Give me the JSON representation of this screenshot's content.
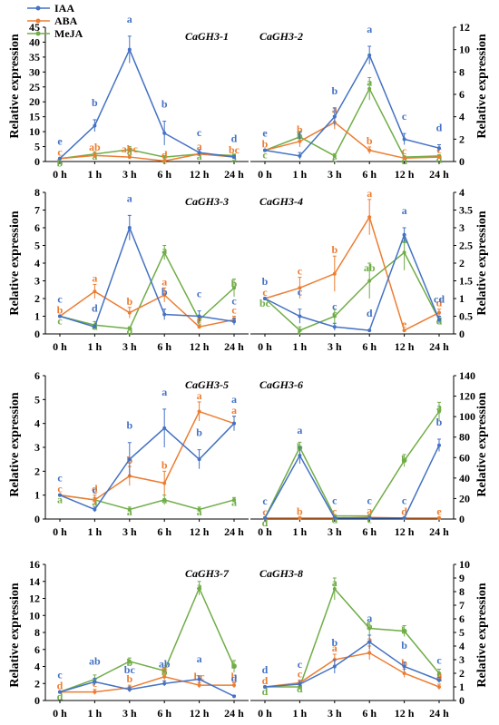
{
  "y_axis_label": "Relative expression",
  "legend": [
    "IAA",
    "ABA",
    "MeJA"
  ],
  "colors": {
    "IAA": "#4472C4",
    "ABA": "#ED7D31",
    "MeJA": "#70AD47",
    "axis": "#000000"
  },
  "chart_data": [
    {
      "type": "line",
      "title": "CaGH3-1",
      "side": "left",
      "x": [
        "0 h",
        "1 h",
        "3 h",
        "6 h",
        "12 h",
        "24 h"
      ],
      "ylim": [
        0,
        45
      ],
      "yticks": [
        0,
        5,
        10,
        15,
        20,
        25,
        30,
        35,
        40,
        45
      ],
      "series": [
        {
          "name": "IAA",
          "values": [
            1,
            12,
            37.5,
            9.5,
            3,
            1.5
          ],
          "errors": [
            0,
            2,
            4.5,
            4,
            1,
            0.5
          ],
          "labels": [
            "e",
            "b",
            "a",
            "b",
            "c",
            "d"
          ]
        },
        {
          "name": "ABA",
          "values": [
            1,
            2,
            1.5,
            0.2,
            2.5,
            1.5
          ],
          "errors": [
            0,
            0.8,
            0.6,
            0,
            0.5,
            0.3
          ],
          "labels": [
            "c",
            "ab",
            "abc",
            "d",
            "a",
            "bc"
          ]
        },
        {
          "name": "MeJA",
          "values": [
            1,
            2.5,
            4,
            1.5,
            2.5,
            2
          ],
          "errors": [
            0,
            0.8,
            1,
            0.5,
            0.8,
            0.5
          ],
          "labels": [
            "b",
            "a",
            "a",
            "c",
            "a",
            "a"
          ]
        }
      ]
    },
    {
      "type": "line",
      "title": "CaGH3-2",
      "side": "right",
      "x": [
        "0 h",
        "1 h",
        "3 h",
        "6 h",
        "12 h",
        "24 h"
      ],
      "ylim": [
        0,
        12
      ],
      "yticks": [
        0,
        2,
        4,
        6,
        8,
        10,
        12
      ],
      "series": [
        {
          "name": "IAA",
          "values": [
            1,
            0.5,
            4,
            9.5,
            2,
            1.2
          ],
          "errors": [
            0,
            0.3,
            0.8,
            0.8,
            0.5,
            0.3
          ],
          "labels": [
            "e",
            "f",
            "b",
            "a",
            "c",
            "d"
          ]
        },
        {
          "name": "ABA",
          "values": [
            1,
            1.8,
            3.5,
            1,
            0.3,
            0.4
          ],
          "errors": [
            0,
            0.5,
            0.6,
            0.3,
            0.1,
            0.1
          ],
          "labels": [
            "b",
            "b",
            "a",
            "b",
            "c",
            "c"
          ]
        },
        {
          "name": "MeJA",
          "values": [
            1,
            2.2,
            0.5,
            6.5,
            0.4,
            0.5
          ],
          "errors": [
            0,
            0.5,
            0.2,
            1,
            0.1,
            0.1
          ],
          "labels": [
            "c",
            "b",
            "e",
            "a",
            "d",
            "d"
          ]
        }
      ]
    },
    {
      "type": "line",
      "title": "CaGH3-3",
      "side": "left",
      "x": [
        "0 h",
        "1 h",
        "3 h",
        "6 h",
        "12 h",
        "24 h"
      ],
      "ylim": [
        0,
        8
      ],
      "yticks": [
        0,
        1,
        2,
        3,
        4,
        5,
        6,
        7,
        8
      ],
      "series": [
        {
          "name": "IAA",
          "values": [
            1,
            0.4,
            6,
            1.1,
            1,
            0.7
          ],
          "errors": [
            0,
            0.1,
            0.7,
            0.3,
            0.3,
            0.2
          ],
          "labels": [
            "c",
            "d",
            "a",
            "b",
            "c",
            "c"
          ]
        },
        {
          "name": "ABA",
          "values": [
            1,
            2.4,
            1.2,
            2.2,
            0.4,
            0.8
          ],
          "errors": [
            0,
            0.4,
            0.3,
            0.4,
            0.1,
            0.2
          ],
          "labels": [
            "b",
            "a",
            "b",
            "a",
            "c",
            "c"
          ]
        },
        {
          "name": "MeJA",
          "values": [
            1,
            0.5,
            0.3,
            4.6,
            0.8,
            2.6
          ],
          "errors": [
            0,
            0.2,
            0.1,
            0.4,
            0.2,
            0.5
          ],
          "labels": [
            "c",
            "d",
            "d",
            "a",
            "c",
            "b"
          ]
        }
      ]
    },
    {
      "type": "line",
      "title": "CaGH3-4",
      "side": "right",
      "x": [
        "0 h",
        "1 h",
        "3 h",
        "6 h",
        "12 h",
        "24 h"
      ],
      "ylim": [
        0,
        4
      ],
      "yticks": [
        0,
        0.5,
        1,
        1.5,
        2,
        2.5,
        3,
        3.5,
        4
      ],
      "series": [
        {
          "name": "IAA",
          "values": [
            1,
            0.5,
            0.2,
            0.1,
            2.8,
            0.4
          ],
          "errors": [
            0,
            0.2,
            0.1,
            0,
            0.2,
            0.1
          ],
          "labels": [
            "b",
            "c",
            "c",
            "d",
            "a",
            "cd"
          ]
        },
        {
          "name": "ABA",
          "values": [
            1,
            1.3,
            1.7,
            3.3,
            0.1,
            0.6
          ],
          "errors": [
            0,
            0.3,
            0.5,
            0.5,
            0,
            0.1
          ],
          "labels": [
            "c",
            "c",
            "b",
            "a",
            "e",
            "d"
          ]
        },
        {
          "name": "MeJA",
          "values": [
            1,
            0.1,
            0.5,
            1.5,
            2.3,
            0.4
          ],
          "errors": [
            0,
            0.1,
            0.2,
            0.5,
            0.5,
            0.1
          ],
          "labels": [
            "bc",
            "c",
            "c",
            "ab",
            "a",
            "d"
          ]
        }
      ]
    },
    {
      "type": "line",
      "title": "CaGH3-5",
      "side": "left",
      "x": [
        "0 h",
        "1 h",
        "3 h",
        "6 h",
        "12 h",
        "24 h"
      ],
      "ylim": [
        0,
        6
      ],
      "yticks": [
        0,
        1,
        2,
        3,
        4,
        5,
        6
      ],
      "series": [
        {
          "name": "IAA",
          "values": [
            1,
            0.4,
            2.5,
            3.8,
            2.5,
            4
          ],
          "errors": [
            0,
            0.1,
            0.7,
            0.8,
            0.4,
            0.3
          ],
          "labels": [
            "c",
            "c",
            "b",
            "a",
            "b",
            "a"
          ]
        },
        {
          "name": "ABA",
          "values": [
            1,
            0.8,
            1.8,
            1.5,
            4.5,
            4
          ],
          "errors": [
            0,
            0.2,
            0.4,
            0.5,
            0.4,
            0.3
          ],
          "labels": [
            "c",
            "d",
            "b",
            "b",
            "a",
            "a"
          ]
        },
        {
          "name": "MeJA",
          "values": [
            1,
            0.8,
            0.4,
            0.8,
            0.4,
            0.8
          ],
          "errors": [
            0,
            0.1,
            0.1,
            0.2,
            0.1,
            0.1
          ],
          "labels": [
            "a",
            "a",
            "a",
            "a",
            "a",
            "a"
          ]
        }
      ]
    },
    {
      "type": "line",
      "title": "CaGH3-6",
      "side": "right",
      "x": [
        "0 h",
        "1 h",
        "3 h",
        "6 h",
        "12 h",
        "24 h"
      ],
      "ylim": [
        0,
        140
      ],
      "yticks": [
        0,
        20,
        40,
        60,
        80,
        100,
        120,
        140
      ],
      "series": [
        {
          "name": "IAA",
          "values": [
            1,
            62,
            1,
            1,
            1,
            72
          ],
          "errors": [
            0,
            8,
            0.5,
            0.5,
            0.5,
            6
          ],
          "labels": [
            "c",
            "a",
            "c",
            "c",
            "c",
            "b"
          ]
        },
        {
          "name": "ABA",
          "values": [
            1,
            1,
            1,
            1.5,
            1,
            1
          ],
          "errors": [
            0,
            0.5,
            0.5,
            0.5,
            0.5,
            0.5
          ],
          "labels": [
            "c",
            "b",
            "c",
            "a",
            "d",
            "e"
          ]
        },
        {
          "name": "MeJA",
          "values": [
            1,
            70,
            3,
            3,
            57,
            105
          ],
          "errors": [
            0,
            5,
            1,
            1,
            6,
            9
          ],
          "labels": [
            "d",
            "b",
            "d",
            "c",
            "b",
            "a"
          ]
        }
      ]
    },
    {
      "type": "line",
      "title": "CaGH3-7",
      "side": "left",
      "x": [
        "0 h",
        "1 h",
        "3 h",
        "6 h",
        "12 h",
        "24 h"
      ],
      "ylim": [
        0,
        16
      ],
      "yticks": [
        0,
        2,
        4,
        6,
        8,
        10,
        12,
        14,
        16
      ],
      "series": [
        {
          "name": "IAA",
          "values": [
            1,
            2.2,
            1.3,
            2,
            2.5,
            0.5
          ],
          "errors": [
            0,
            0.4,
            0.3,
            0.3,
            0.4,
            0.1
          ],
          "labels": [
            "c",
            "ab",
            "bc",
            "ab",
            "a",
            "d"
          ]
        },
        {
          "name": "ABA",
          "values": [
            1,
            1,
            1.5,
            2.8,
            1.8,
            1.8
          ],
          "errors": [
            0,
            0.3,
            0.3,
            0.4,
            0.3,
            0.3
          ],
          "labels": [
            "d",
            "c",
            "b",
            "a",
            "bc",
            "b"
          ]
        },
        {
          "name": "MeJA",
          "values": [
            1,
            2.5,
            4.6,
            3.5,
            13.2,
            4
          ],
          "errors": [
            0,
            0.5,
            0.4,
            0.4,
            0.8,
            0.7
          ],
          "labels": [
            "d",
            "c",
            "b",
            "b",
            "a",
            "b"
          ]
        }
      ]
    },
    {
      "type": "line",
      "title": "CaGH3-8",
      "side": "right",
      "x": [
        "0 h",
        "1 h",
        "3 h",
        "6 h",
        "12 h",
        "24 h"
      ],
      "ylim": [
        0,
        10
      ],
      "yticks": [
        0,
        1,
        2,
        3,
        4,
        5,
        6,
        7,
        8,
        9,
        10
      ],
      "series": [
        {
          "name": "IAA",
          "values": [
            1,
            1.2,
            2.5,
            4.3,
            2.5,
            1.5
          ],
          "errors": [
            0,
            0.2,
            0.5,
            0.5,
            0.3,
            0.2
          ],
          "labels": [
            "d",
            "c",
            "b",
            "a",
            "b",
            "c"
          ]
        },
        {
          "name": "ABA",
          "values": [
            1,
            1.3,
            3,
            3.5,
            2,
            1
          ],
          "errors": [
            0,
            0.2,
            0.4,
            0.5,
            0.3,
            0.2
          ],
          "labels": [
            "d",
            "c",
            "a",
            "a",
            "b",
            "d"
          ]
        },
        {
          "name": "MeJA",
          "values": [
            1,
            1,
            8.2,
            5.3,
            5.1,
            2
          ],
          "errors": [
            0,
            0.2,
            0.8,
            0.5,
            0.4,
            0.3
          ],
          "labels": [
            "d",
            "d",
            "a",
            "b",
            "b",
            "c"
          ]
        }
      ]
    }
  ]
}
